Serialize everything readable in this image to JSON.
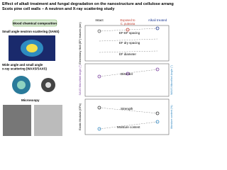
{
  "title": "Effect of alkali treatment and fungal degradation on the nanostructure and cellulose arrangement in Scots pine cell walls – A neutron and X-ray scattering study",
  "left": {
    "badge": "Wood chemical composition",
    "sans": "Small angle neutron scattering (SANS)",
    "xray": "Wide angle and small angle x-ray scattering (WAXS/SAXS)",
    "microscopy": "Microscopy"
  },
  "columns": [
    "Intact",
    "Exposed to C. puteana",
    "Alkali treated"
  ],
  "panels": [
    {
      "ylabel": "Elementary fibril (EF) features (nm)",
      "annotations": [
        "EF-EF spacing",
        "EF dry spacing",
        "EF diameter"
      ]
    },
    {
      "ylabel": "SAXS Microfibril Angle (°)",
      "y2label": "WAXS Microfibril Angle (°)",
      "annotations": [
        "Disorder"
      ]
    },
    {
      "ylabel": "Elastic Modulus (GPa)",
      "y2label": "Moisture content (%)",
      "annotations": [
        "Strength",
        "Moisture content"
      ]
    }
  ]
}
